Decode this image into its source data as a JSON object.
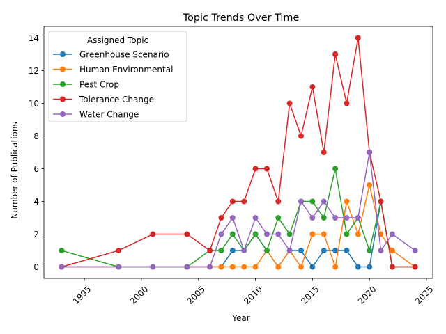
{
  "chart_data": {
    "type": "line",
    "title": "Topic Trends Over Time",
    "xlabel": "Year",
    "ylabel": "Number of Publications",
    "xlim": [
      1991.45,
      2025.55
    ],
    "ylim": [
      -0.7,
      14.7
    ],
    "xticks": [
      1995,
      2000,
      2005,
      2010,
      2015,
      2020,
      2025
    ],
    "yticks": [
      0,
      2,
      4,
      6,
      8,
      10,
      12,
      14
    ],
    "grid": false,
    "legend": {
      "title": "Assigned Topic",
      "placement": "upper-left"
    },
    "series": [
      {
        "name": "Greenhouse Scenario",
        "color": "#1f77b4",
        "points": [
          [
            1993,
            0
          ],
          [
            1998,
            0
          ],
          [
            2001,
            0
          ],
          [
            2004,
            0
          ],
          [
            2006,
            0
          ],
          [
            2007,
            0
          ],
          [
            2008,
            1
          ],
          [
            2009,
            1
          ],
          [
            2010,
            2
          ],
          [
            2011,
            1
          ],
          [
            2012,
            0
          ],
          [
            2013,
            1
          ],
          [
            2014,
            1
          ],
          [
            2015,
            0
          ],
          [
            2016,
            1
          ],
          [
            2017,
            1
          ],
          [
            2018,
            1
          ],
          [
            2019,
            0
          ],
          [
            2020,
            0
          ],
          [
            2021,
            4
          ],
          [
            2022,
            0
          ],
          [
            2024,
            0
          ]
        ]
      },
      {
        "name": "Human Environmental",
        "color": "#ff7f0e",
        "points": [
          [
            1993,
            0
          ],
          [
            1998,
            0
          ],
          [
            2001,
            0
          ],
          [
            2004,
            0
          ],
          [
            2006,
            0
          ],
          [
            2007,
            0
          ],
          [
            2008,
            0
          ],
          [
            2009,
            0
          ],
          [
            2010,
            0
          ],
          [
            2011,
            1
          ],
          [
            2012,
            0
          ],
          [
            2013,
            1
          ],
          [
            2014,
            0
          ],
          [
            2015,
            2
          ],
          [
            2016,
            2
          ],
          [
            2017,
            0
          ],
          [
            2018,
            4
          ],
          [
            2019,
            2
          ],
          [
            2020,
            5
          ],
          [
            2021,
            2
          ],
          [
            2022,
            1
          ],
          [
            2024,
            0
          ]
        ]
      },
      {
        "name": "Pest Crop",
        "color": "#2ca02c",
        "points": [
          [
            1993,
            1
          ],
          [
            1998,
            0
          ],
          [
            2001,
            0
          ],
          [
            2004,
            0
          ],
          [
            2006,
            1
          ],
          [
            2007,
            1
          ],
          [
            2008,
            2
          ],
          [
            2009,
            1
          ],
          [
            2010,
            2
          ],
          [
            2011,
            1
          ],
          [
            2012,
            3
          ],
          [
            2013,
            2
          ],
          [
            2014,
            4
          ],
          [
            2015,
            4
          ],
          [
            2016,
            3
          ],
          [
            2017,
            6
          ],
          [
            2018,
            2
          ],
          [
            2019,
            3
          ],
          [
            2020,
            1
          ],
          [
            2021,
            4
          ],
          [
            2022,
            0
          ],
          [
            2024,
            0
          ]
        ]
      },
      {
        "name": "Tolerance Change",
        "color": "#d62728",
        "points": [
          [
            1993,
            0
          ],
          [
            1998,
            1
          ],
          [
            2001,
            2
          ],
          [
            2004,
            2
          ],
          [
            2006,
            1
          ],
          [
            2007,
            3
          ],
          [
            2008,
            4
          ],
          [
            2009,
            4
          ],
          [
            2010,
            6
          ],
          [
            2011,
            6
          ],
          [
            2012,
            4
          ],
          [
            2013,
            10
          ],
          [
            2014,
            8
          ],
          [
            2015,
            11
          ],
          [
            2016,
            7
          ],
          [
            2017,
            13
          ],
          [
            2018,
            10
          ],
          [
            2019,
            14
          ],
          [
            2020,
            7
          ],
          [
            2021,
            4
          ],
          [
            2022,
            0
          ],
          [
            2024,
            0
          ]
        ]
      },
      {
        "name": "Water Change",
        "color": "#9467bd",
        "points": [
          [
            1993,
            0
          ],
          [
            1998,
            0
          ],
          [
            2001,
            0
          ],
          [
            2004,
            0
          ],
          [
            2006,
            0
          ],
          [
            2007,
            2
          ],
          [
            2008,
            3
          ],
          [
            2009,
            1
          ],
          [
            2010,
            3
          ],
          [
            2011,
            2
          ],
          [
            2012,
            2
          ],
          [
            2013,
            1
          ],
          [
            2014,
            4
          ],
          [
            2015,
            3
          ],
          [
            2016,
            4
          ],
          [
            2017,
            3
          ],
          [
            2018,
            3
          ],
          [
            2019,
            3
          ],
          [
            2020,
            7
          ],
          [
            2021,
            1
          ],
          [
            2022,
            2
          ],
          [
            2024,
            1
          ]
        ]
      }
    ]
  }
}
